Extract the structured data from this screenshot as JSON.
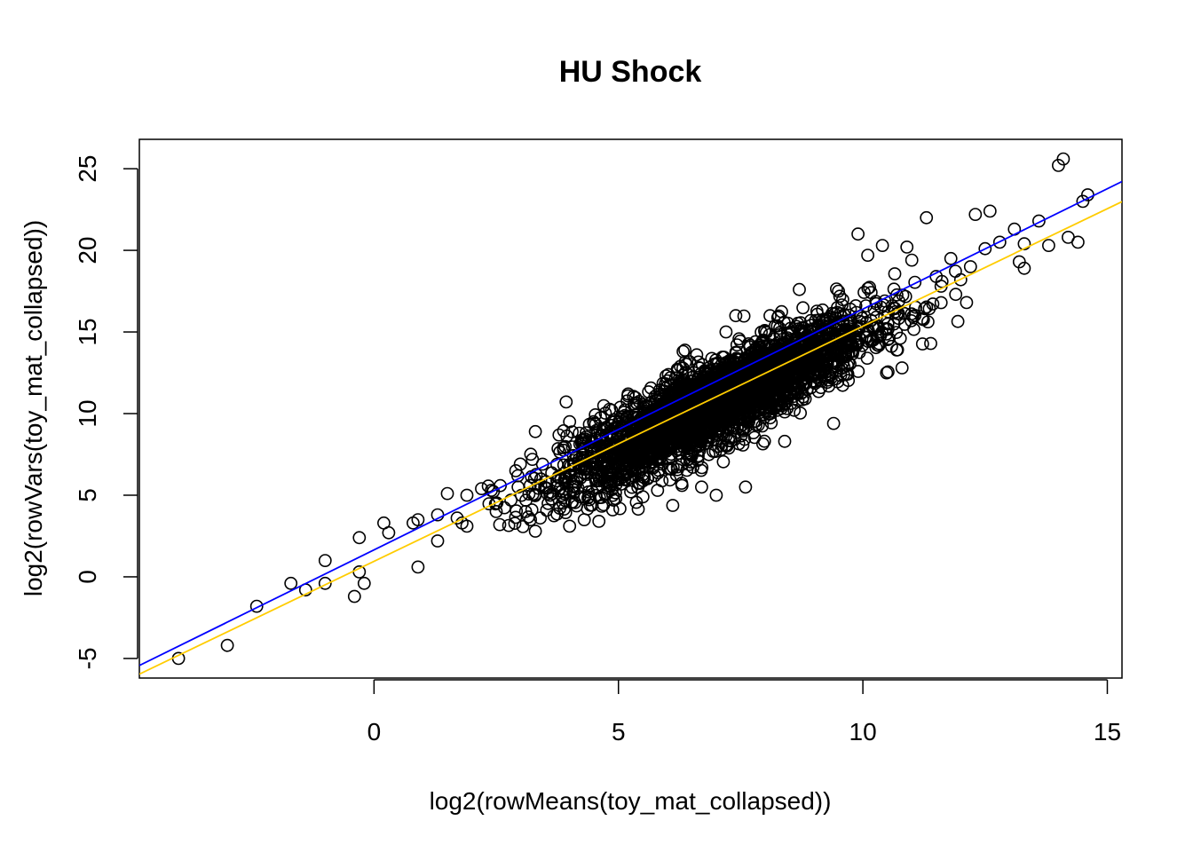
{
  "chart_data": {
    "type": "scatter",
    "title": "HU Shock",
    "xlabel": "log2(rowMeans(toy_mat_collapsed))",
    "ylabel": "log2(rowVars(toy_mat_collapsed))",
    "xlim": [
      -4.8,
      15.3
    ],
    "ylim": [
      -6.2,
      26.8
    ],
    "x_ticks": [
      0,
      5,
      10,
      15
    ],
    "y_ticks": [
      -5,
      0,
      5,
      10,
      15,
      20,
      25
    ],
    "grid": false,
    "point_style": "open-circle",
    "series": [
      {
        "points": [
          [
            -4.0,
            -5.0
          ],
          [
            -3.0,
            -4.2
          ],
          [
            -2.4,
            -1.8
          ],
          [
            -1.7,
            -0.4
          ],
          [
            -1.4,
            -0.8
          ],
          [
            -1.0,
            1.0
          ],
          [
            -1.0,
            -0.4
          ],
          [
            -0.4,
            -1.2
          ],
          [
            -0.3,
            2.4
          ],
          [
            -0.3,
            0.3
          ],
          [
            -0.2,
            -0.4
          ],
          [
            0.2,
            3.3
          ],
          [
            0.3,
            2.7
          ],
          [
            0.8,
            3.3
          ],
          [
            0.9,
            3.5
          ],
          [
            0.9,
            0.6
          ],
          [
            1.3,
            3.8
          ],
          [
            1.3,
            2.2
          ],
          [
            1.5,
            5.1
          ],
          [
            1.7,
            3.6
          ],
          [
            1.8,
            3.3
          ],
          [
            1.9,
            3.1
          ],
          [
            1.9,
            5.0
          ],
          [
            2.2,
            5.4
          ],
          [
            2.4,
            5.3
          ],
          [
            2.5,
            4.0
          ],
          [
            2.5,
            4.5
          ],
          [
            2.8,
            4.7
          ],
          [
            2.9,
            6.5
          ],
          [
            3.1,
            4.0
          ],
          [
            3.2,
            3.5
          ],
          [
            3.3,
            2.8
          ],
          [
            3.3,
            8.9
          ],
          [
            3.4,
            3.6
          ],
          [
            3.6,
            5.0
          ],
          [
            3.8,
            4.2
          ],
          [
            4.0,
            3.1
          ],
          [
            4.0,
            9.5
          ],
          [
            4.1,
            5.5
          ],
          [
            4.2,
            8.8
          ],
          [
            4.3,
            3.5
          ],
          [
            4.5,
            9.4
          ],
          [
            4.6,
            3.4
          ],
          [
            4.8,
            7.0
          ],
          [
            5.0,
            6.2
          ],
          [
            5.2,
            11.2
          ],
          [
            5.4,
            10.0
          ],
          [
            5.5,
            4.9
          ],
          [
            5.7,
            8.1
          ],
          [
            5.9,
            6.9
          ],
          [
            6.0,
            12.0
          ],
          [
            6.2,
            9.3
          ],
          [
            6.4,
            8.2
          ],
          [
            6.5,
            7.5
          ],
          [
            6.6,
            13.6
          ],
          [
            6.7,
            5.5
          ],
          [
            6.8,
            10.6
          ],
          [
            7.0,
            9.8
          ],
          [
            7.2,
            15.0
          ],
          [
            7.4,
            11.3
          ],
          [
            7.4,
            16.0
          ],
          [
            7.6,
            5.5
          ],
          [
            7.8,
            12.5
          ],
          [
            8.0,
            10.3
          ],
          [
            8.1,
            16.0
          ],
          [
            8.3,
            13.2
          ],
          [
            8.4,
            8.3
          ],
          [
            8.6,
            11.9
          ],
          [
            8.7,
            17.6
          ],
          [
            9.0,
            14.4
          ],
          [
            9.2,
            12.6
          ],
          [
            9.4,
            9.4
          ],
          [
            9.5,
            17.5
          ],
          [
            9.7,
            15.1
          ],
          [
            9.9,
            21.0
          ],
          [
            10.1,
            19.7
          ],
          [
            10.3,
            14.2
          ],
          [
            10.4,
            20.3
          ],
          [
            10.6,
            16.6
          ],
          [
            10.8,
            12.8
          ],
          [
            10.9,
            20.2
          ],
          [
            11.0,
            19.4
          ],
          [
            11.3,
            22.0
          ],
          [
            11.5,
            18.4
          ],
          [
            11.6,
            17.8
          ],
          [
            11.8,
            19.5
          ],
          [
            12.0,
            18.2
          ],
          [
            12.3,
            22.2
          ],
          [
            12.5,
            20.1
          ],
          [
            12.6,
            22.4
          ],
          [
            12.8,
            20.5
          ],
          [
            13.1,
            21.3
          ],
          [
            13.3,
            20.4
          ],
          [
            13.3,
            18.9
          ],
          [
            13.8,
            20.3
          ],
          [
            14.0,
            25.2
          ],
          [
            14.1,
            25.6
          ],
          [
            14.2,
            20.8
          ],
          [
            14.4,
            20.5
          ],
          [
            14.5,
            23.0
          ],
          [
            14.6,
            23.4
          ],
          [
            13.2,
            19.3
          ],
          [
            13.6,
            21.8
          ],
          [
            12.2,
            19.0
          ],
          [
            11.9,
            17.3
          ],
          [
            7.0,
            5.0
          ],
          [
            6.3,
            5.6
          ],
          [
            5.8,
            5.3
          ],
          [
            4.9,
            4.7
          ],
          [
            4.4,
            4.9
          ]
        ]
      }
    ],
    "fit_lines": [
      {
        "color": "#0000ff",
        "intercept": 1.65,
        "slope": 1.475
      },
      {
        "color": "#ffcc00",
        "intercept": 0.95,
        "slope": 1.44
      }
    ],
    "cloud": {
      "x_center": 7.0,
      "x_sd": 1.55,
      "slope": 1.44,
      "intercept": 0.6,
      "resid_sd": 1.25,
      "count": 3200
    }
  }
}
